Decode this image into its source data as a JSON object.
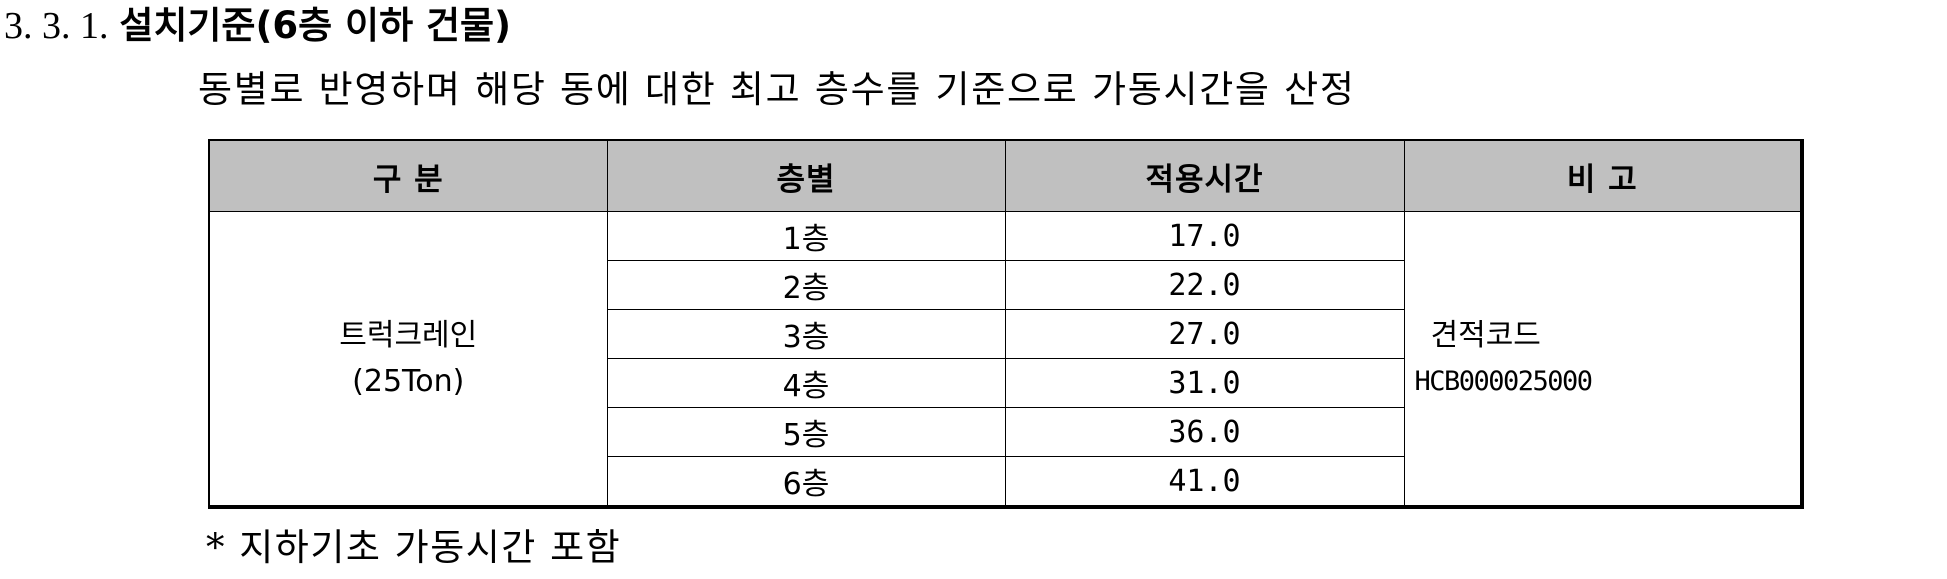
{
  "heading": {
    "number": "3. 3. 1.",
    "title": "설치기준(6층 이하 건물)"
  },
  "description": "동별로 반영하며 해당 동에 대한 최고 층수를 기준으로 가동시간을 산정",
  "table": {
    "headers": [
      "구 분",
      "층별",
      "적용시간",
      "비 고"
    ],
    "category": {
      "line1": "트럭크레인",
      "line2": "(25Ton)"
    },
    "rows": [
      {
        "floor": "1층",
        "time": "17.0"
      },
      {
        "floor": "2층",
        "time": "22.0"
      },
      {
        "floor": "3층",
        "time": "27.0"
      },
      {
        "floor": "4층",
        "time": "31.0"
      },
      {
        "floor": "5층",
        "time": "36.0"
      },
      {
        "floor": "6층",
        "time": "41.0"
      }
    ],
    "note": {
      "line1": "견적코드",
      "line2": "HCB000025000"
    }
  },
  "footnote": "* 지하기초 가동시간 포함"
}
